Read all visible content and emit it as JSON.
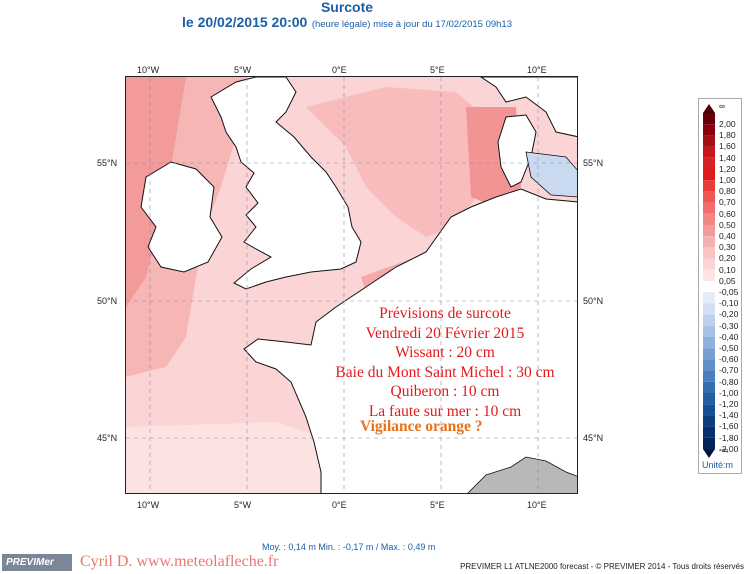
{
  "header": {
    "title": "Surcote",
    "date": "le 20/02/2015 20:00",
    "note": "(heure légale) mise à jour du 17/02/2015 09h13"
  },
  "map": {
    "lon_labels": [
      "10°W",
      "5°W",
      "0°E",
      "5°E",
      "10°E"
    ],
    "lat_labels": [
      "55°N",
      "50°N",
      "45°N"
    ],
    "colors": {
      "sea_light": "#fbd5d5",
      "sea_mid": "#f7b6b6",
      "sea_strong": "#f29494",
      "sea_negative": "#c9daf0",
      "land": "#ffffff",
      "land_grey": "#b8b8b8"
    }
  },
  "annotation": {
    "lines": [
      "Prévisions de surcote",
      "Vendredi 20 Février 2015",
      "Wissant : 20 cm",
      "Baie du Mont Saint Michel : 30 cm",
      "Quiberon : 10 cm",
      "La faute sur mer : 10 cm"
    ],
    "alert": "Vigilance orange ?"
  },
  "legend": {
    "top_symbol": "∞",
    "bottom_symbol": "-∞",
    "labels": [
      "2,00",
      "1,80",
      "1,60",
      "1,40",
      "1,20",
      "1,00",
      "0,80",
      "0,70",
      "0,60",
      "0,50",
      "0,40",
      "0,30",
      "0,20",
      "0,10",
      "0,05",
      "-0,05",
      "-0,10",
      "-0,20",
      "-0,30",
      "-0,40",
      "-0,50",
      "-0,60",
      "-0,70",
      "-0,80",
      "-1,00",
      "-1,20",
      "-1,40",
      "-1,60",
      "-1,80",
      "-2,00"
    ],
    "colors": [
      "#67000d",
      "#8b0010",
      "#a50f15",
      "#c4161c",
      "#d62125",
      "#e31a1c",
      "#ea3b3b",
      "#ef5757",
      "#f26d6d",
      "#f38585",
      "#f59a9a",
      "#f7b0b0",
      "#f9c4c4",
      "#fbd5d5",
      "#fde5e5",
      "#ffffff",
      "#e4ecf7",
      "#d2e0f2",
      "#bcd2ec",
      "#a6c3e5",
      "#8eb2dc",
      "#789fd1",
      "#6090c8",
      "#4a7fbf",
      "#366eb2",
      "#255ea5",
      "#174e95",
      "#0d3e82",
      "#083070",
      "#05225a"
    ],
    "unit": "Unité:m"
  },
  "stats": "Moy. : 0,14 m    Min. : -0,17 m / Max. : 0,49 m",
  "footer": {
    "logo": "PREVIMer",
    "author": "Cyril D. www.meteolafleche.fr",
    "credits": "PREVIMER L1 ATLNE2000 forecast - © PREVIMER 2014 - Tous droits réservés"
  }
}
